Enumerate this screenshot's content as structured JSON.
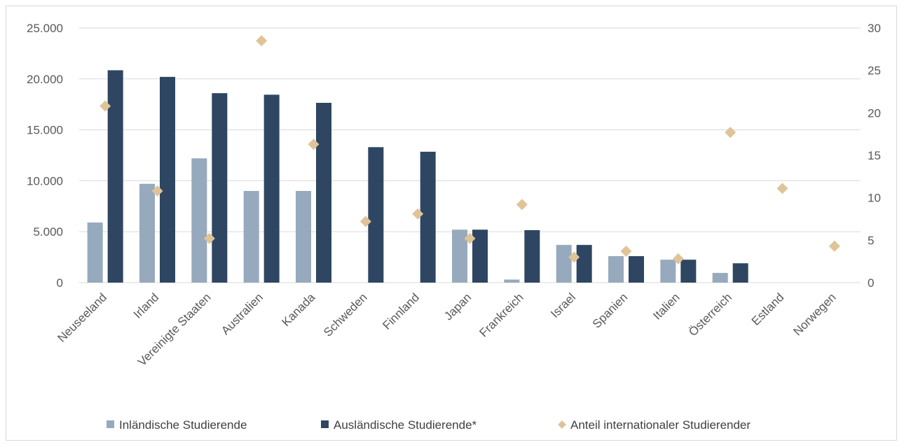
{
  "chart_data": {
    "type": "bar",
    "title": "",
    "xlabel": "",
    "ylabel": "",
    "categories": [
      "Neuseeland",
      "Irland",
      "Vereinigte Staaten",
      "Australien",
      "Kanada",
      "Schweden",
      "Finnland",
      "Japan",
      "Frankreich",
      "Israel",
      "Spanien",
      "Italien",
      "Österreich",
      "Estland",
      "Norwegen"
    ],
    "ylim": [
      0,
      25000
    ],
    "y2lim": [
      0,
      30
    ],
    "y_ticks": [
      "0",
      "5.000",
      "10.000",
      "15.000",
      "20.000",
      "25.000"
    ],
    "y2_ticks": [
      "0",
      "5",
      "10",
      "15",
      "20",
      "25",
      "30"
    ],
    "grid": true,
    "legend_position": "bottom",
    "series": [
      {
        "name": "Inländische Studierende",
        "type": "bar",
        "axis": "left",
        "color": "#97a9bd",
        "values": [
          5900,
          9700,
          12200,
          9000,
          9000,
          0,
          0,
          5200,
          300,
          3700,
          2600,
          2250,
          950,
          0,
          0
        ]
      },
      {
        "name": "Ausländische Studierende*",
        "type": "bar",
        "axis": "left",
        "color": "#2e4661",
        "values": [
          20850,
          20200,
          18600,
          18450,
          17650,
          13300,
          12850,
          5200,
          5150,
          3700,
          2600,
          2250,
          1900,
          0,
          0
        ]
      },
      {
        "name": "Anteil internationaler Studierender",
        "type": "scatter",
        "axis": "right",
        "marker": "diamond",
        "color": "#dfc499",
        "values": [
          20.8,
          10.8,
          5.2,
          28.5,
          16.3,
          7.2,
          8.1,
          5.2,
          9.2,
          3.0,
          3.7,
          2.8,
          17.7,
          11.1,
          4.3
        ]
      }
    ]
  }
}
